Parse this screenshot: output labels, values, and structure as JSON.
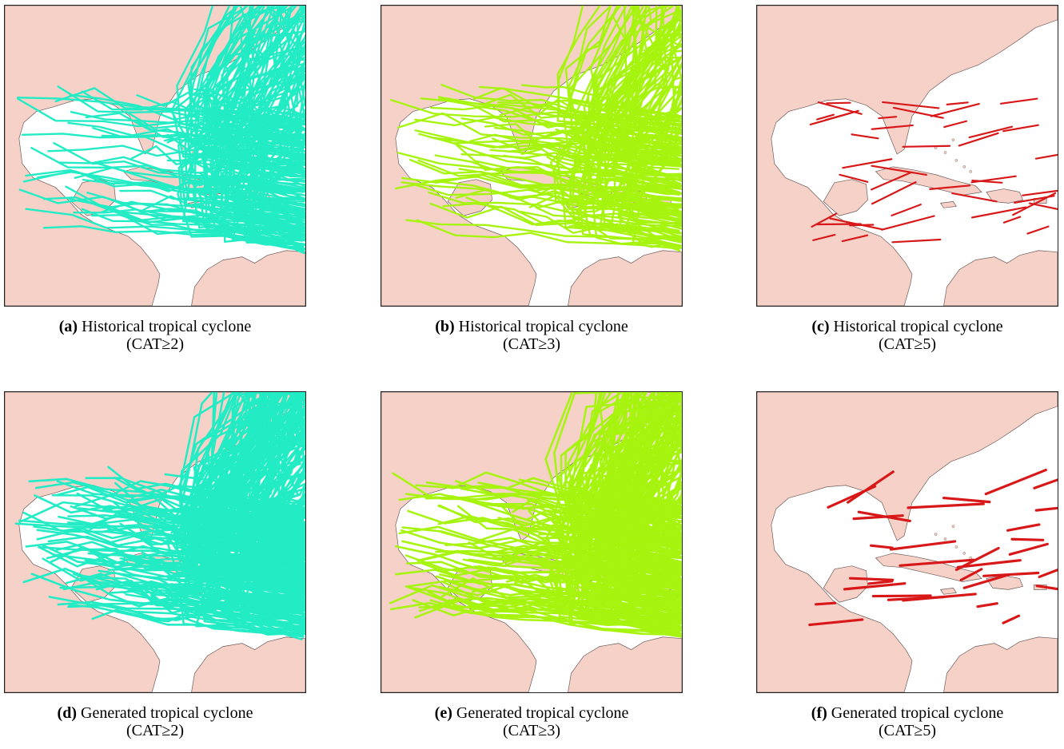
{
  "colors": {
    "land": "#f6d1c8",
    "coast": "#6b5b58",
    "ocean": "#ffffff",
    "cat2": "#23ecc5",
    "cat3": "#a6f40f",
    "cat5": "#d81818"
  },
  "panels": [
    {
      "id": "a",
      "tag": "(a)",
      "label": "Historical tropical cyclone",
      "category": "(CAT≥2)",
      "series": "cat2",
      "source": "historical"
    },
    {
      "id": "b",
      "tag": "(b)",
      "label": "Historical tropical cyclone",
      "category": "(CAT≥3)",
      "series": "cat3",
      "source": "historical"
    },
    {
      "id": "c",
      "tag": "(c)",
      "label": "Historical tropical cyclone",
      "category": "(CAT≥5)",
      "series": "cat5",
      "source": "historical"
    },
    {
      "id": "d",
      "tag": "(d)",
      "label": "Generated tropical cyclone",
      "category": "(CAT≥2)",
      "series": "cat2",
      "source": "generated"
    },
    {
      "id": "e",
      "tag": "(e)",
      "label": "Generated tropical cyclone",
      "category": "(CAT≥3)",
      "series": "cat3",
      "source": "generated"
    },
    {
      "id": "f",
      "tag": "(f)",
      "label": "Generated tropical cyclone",
      "category": "(CAT≥5)",
      "series": "cat5",
      "source": "generated"
    }
  ]
}
